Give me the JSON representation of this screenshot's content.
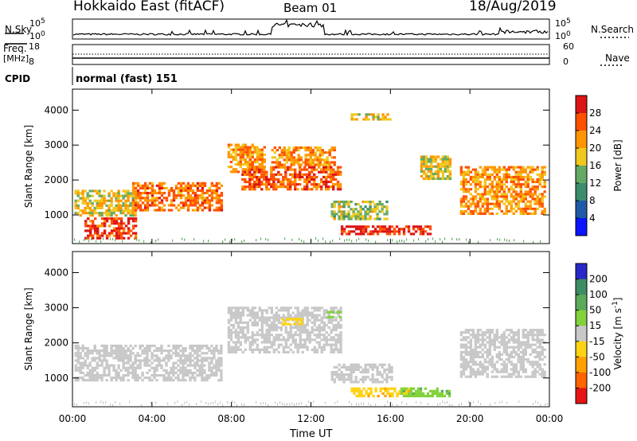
{
  "header": {
    "station": "Hokkaido East (fitACF)",
    "beam": "Beam 01",
    "date": "18/Aug/2019"
  },
  "strip": {
    "nsky_label": "N.Sky",
    "nsky_ticks": [
      "10^5",
      "10^0"
    ],
    "nsearch_label": "N.Search",
    "nsearch_ticks": [
      "10^5",
      "10^0"
    ],
    "freq_label": "Freq.",
    "freq_unit": "[MHz]",
    "freq_ticks": [
      "18",
      "8"
    ],
    "nave_label": "Nave",
    "nave_ticks": [
      "60",
      "0"
    ],
    "cpid_label": "CPID",
    "cpid_text": "normal (fast) 151"
  },
  "chart_data": [
    {
      "type": "heatmap",
      "panel": "power",
      "ylabel": "Slant Range [km]",
      "ylim": [
        180,
        4600
      ],
      "yticks": [
        1000,
        2000,
        3000,
        4000
      ],
      "colorbar": {
        "label": "Power [dB]",
        "ticks": [
          4,
          8,
          12,
          16,
          20,
          24,
          28
        ],
        "colors": [
          "#0a14ff",
          "#1e5aa8",
          "#3c8c6e",
          "#64aa64",
          "#f0c81e",
          "#ff9600",
          "#ff5000",
          "#dc1414"
        ]
      },
      "regions": [
        {
          "t0": 0.1,
          "t1": 3.2,
          "r0": 950,
          "r1": 1700,
          "value": 18
        },
        {
          "t0": 3.0,
          "t1": 7.5,
          "r0": 1100,
          "r1": 1900,
          "value": 24
        },
        {
          "t0": 0.6,
          "t1": 3.2,
          "r0": 300,
          "r1": 900,
          "value": 28
        },
        {
          "t0": 7.8,
          "t1": 9.6,
          "r0": 2200,
          "r1": 3000,
          "value": 22
        },
        {
          "t0": 8.5,
          "t1": 13.5,
          "r0": 1700,
          "r1": 2400,
          "value": 26
        },
        {
          "t0": 10.0,
          "t1": 13.2,
          "r0": 2400,
          "r1": 2900,
          "value": 22
        },
        {
          "t0": 13.0,
          "t1": 15.8,
          "r0": 850,
          "r1": 1400,
          "value": 16
        },
        {
          "t0": 13.5,
          "t1": 18.0,
          "r0": 420,
          "r1": 700,
          "value": 30
        },
        {
          "t0": 17.5,
          "t1": 19.0,
          "r0": 2000,
          "r1": 2700,
          "value": 18
        },
        {
          "t0": 19.5,
          "t1": 23.8,
          "r0": 1000,
          "r1": 2400,
          "value": 22
        },
        {
          "t0": 14.0,
          "t1": 16.0,
          "r0": 3700,
          "r1": 3900,
          "value": 18
        }
      ]
    },
    {
      "type": "heatmap",
      "panel": "velocity",
      "ylabel": "Slant Range [km]",
      "xlabel": "Time UT",
      "xlim": [
        0,
        24
      ],
      "xticks": [
        "00:00",
        "04:00",
        "08:00",
        "12:00",
        "16:00",
        "20:00",
        "00:00"
      ],
      "ylim": [
        180,
        4600
      ],
      "yticks": [
        1000,
        2000,
        3000,
        4000
      ],
      "colorbar": {
        "label": "Velocity [m s-1]",
        "ticks": [
          200,
          100,
          50,
          15,
          -15,
          -50,
          -100,
          -200
        ],
        "colors": [
          "#2828c8",
          "#3c8c64",
          "#5aaa5a",
          "#82d23c",
          "#c8c8c8",
          "#ffd214",
          "#ffa000",
          "#ff6400",
          "#e61414"
        ]
      },
      "regions": [
        {
          "t0": 0.1,
          "t1": 7.5,
          "r0": 900,
          "r1": 1900,
          "value": 0
        },
        {
          "t0": 7.8,
          "t1": 13.5,
          "r0": 1700,
          "r1": 3000,
          "value": 0
        },
        {
          "t0": 13.0,
          "t1": 16.0,
          "r0": 850,
          "r1": 1400,
          "value": 0
        },
        {
          "t0": 14.0,
          "t1": 17.0,
          "r0": 450,
          "r1": 700,
          "value": -40
        },
        {
          "t0": 16.5,
          "t1": 19.0,
          "r0": 450,
          "r1": 700,
          "value": 40
        },
        {
          "t0": 19.5,
          "t1": 23.8,
          "r0": 1000,
          "r1": 2400,
          "value": 0
        },
        {
          "t0": 10.5,
          "t1": 11.5,
          "r0": 2500,
          "r1": 2700,
          "value": -30
        },
        {
          "t0": 12.8,
          "t1": 13.5,
          "r0": 2700,
          "r1": 2900,
          "value": 30
        }
      ]
    }
  ]
}
